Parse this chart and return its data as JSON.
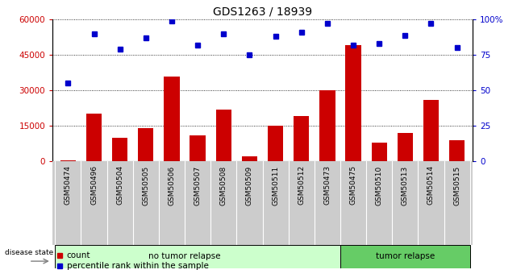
{
  "title": "GDS1263 / 18939",
  "categories": [
    "GSM50474",
    "GSM50496",
    "GSM50504",
    "GSM50505",
    "GSM50506",
    "GSM50507",
    "GSM50508",
    "GSM50509",
    "GSM50511",
    "GSM50512",
    "GSM50473",
    "GSM50475",
    "GSM50510",
    "GSM50513",
    "GSM50514",
    "GSM50515"
  ],
  "counts": [
    500,
    20000,
    10000,
    14000,
    36000,
    11000,
    22000,
    2000,
    15000,
    19000,
    30000,
    49000,
    8000,
    12000,
    26000,
    9000
  ],
  "percentiles": [
    55,
    90,
    79,
    87,
    99,
    82,
    90,
    75,
    88,
    91,
    97,
    82,
    83,
    89,
    97,
    80
  ],
  "no_tumor_count": 11,
  "tumor_count": 5,
  "bar_color": "#cc0000",
  "dot_color": "#0000cc",
  "no_tumor_color": "#ccffcc",
  "tumor_color": "#66cc66",
  "tick_bg_color": "#cccccc",
  "ylim_left": [
    0,
    60000
  ],
  "ylim_right": [
    0,
    100
  ],
  "yticks_left": [
    0,
    15000,
    30000,
    45000,
    60000
  ],
  "ytick_labels_left": [
    "0",
    "15000",
    "30000",
    "45000",
    "60000"
  ],
  "yticks_right": [
    0,
    25,
    50,
    75,
    100
  ],
  "ytick_labels_right": [
    "0",
    "25",
    "50",
    "75",
    "100%"
  ],
  "legend_count_label": "count",
  "legend_percentile_label": "percentile rank within the sample",
  "disease_state_label": "disease state",
  "no_tumor_label": "no tumor relapse",
  "tumor_label": "tumor relapse",
  "fig_width": 6.51,
  "fig_height": 3.45,
  "dpi": 100
}
